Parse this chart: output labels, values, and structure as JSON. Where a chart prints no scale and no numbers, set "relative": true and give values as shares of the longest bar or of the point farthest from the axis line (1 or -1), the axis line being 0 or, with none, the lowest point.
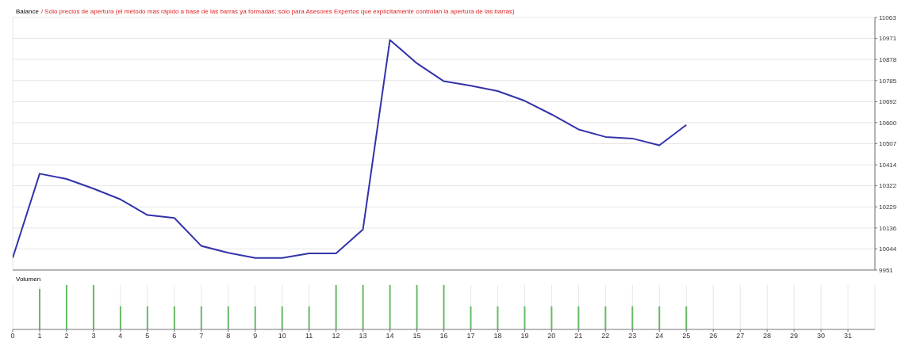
{
  "chart_data": [
    {
      "type": "line",
      "title": "Balance",
      "subtitle": "/ Sólo precios de apertura (el método más rápido a base de las barras ya formadas; sólo para Asesores Expertos que explícitamente controlan la apertura de las barras)",
      "x": [
        0,
        1,
        2,
        3,
        4,
        5,
        6,
        7,
        8,
        9,
        10,
        11,
        12,
        13,
        14,
        15,
        16,
        17,
        18,
        19,
        20,
        21,
        22,
        23,
        24,
        25
      ],
      "series": [
        {
          "color": "#3333aa",
          "values": [
            10004,
            10375,
            10352,
            10309,
            10262,
            10193,
            10180,
            10057,
            10027,
            10004,
            10004,
            10024,
            10024,
            10130,
            10964,
            10861,
            10782,
            10762,
            10739,
            10696,
            10636,
            10570,
            10537,
            10530,
            10500,
            10590
          ]
        }
      ],
      "xlim": [
        0,
        32
      ],
      "xticks": [
        0,
        1,
        2,
        3,
        4,
        5,
        6,
        7,
        8,
        9,
        10,
        11,
        12,
        13,
        14,
        15,
        16,
        17,
        18,
        19,
        20,
        21,
        22,
        23,
        24,
        25,
        26,
        27,
        28,
        29,
        30,
        31
      ],
      "ylim": [
        9951,
        11063
      ],
      "yticks": [
        9951,
        10044,
        10136,
        10229,
        10322,
        10414,
        10507,
        10600,
        10692,
        10785,
        10878,
        10971,
        11063
      ],
      "grid": true,
      "tick_labels": "y",
      "marker": "none",
      "line_style": "solid"
    },
    {
      "type": "bar",
      "title": "Volumen",
      "relative": true,
      "x": [
        1,
        2,
        3,
        4,
        5,
        6,
        7,
        8,
        9,
        10,
        11,
        12,
        13,
        14,
        15,
        16,
        17,
        18,
        19,
        20,
        21,
        22,
        23,
        24,
        25
      ],
      "series": [
        {
          "color": "#66bb66",
          "values": [
            0.91,
            1,
            1,
            0.52,
            0.52,
            0.52,
            0.52,
            0.52,
            0.52,
            0.52,
            0.52,
            1,
            1,
            1,
            1,
            1,
            0.52,
            0.52,
            0.52,
            0.52,
            0.52,
            0.52,
            0.52,
            0.52,
            0.52
          ]
        }
      ],
      "xlim": [
        0,
        32
      ],
      "xticks": [
        0,
        1,
        2,
        3,
        4,
        5,
        6,
        7,
        8,
        9,
        10,
        11,
        12,
        13,
        14,
        15,
        16,
        17,
        18,
        19,
        20,
        21,
        22,
        23,
        24,
        25,
        26,
        27,
        28,
        29,
        30,
        31
      ],
      "grid": "x",
      "tick_labels": "x"
    }
  ]
}
